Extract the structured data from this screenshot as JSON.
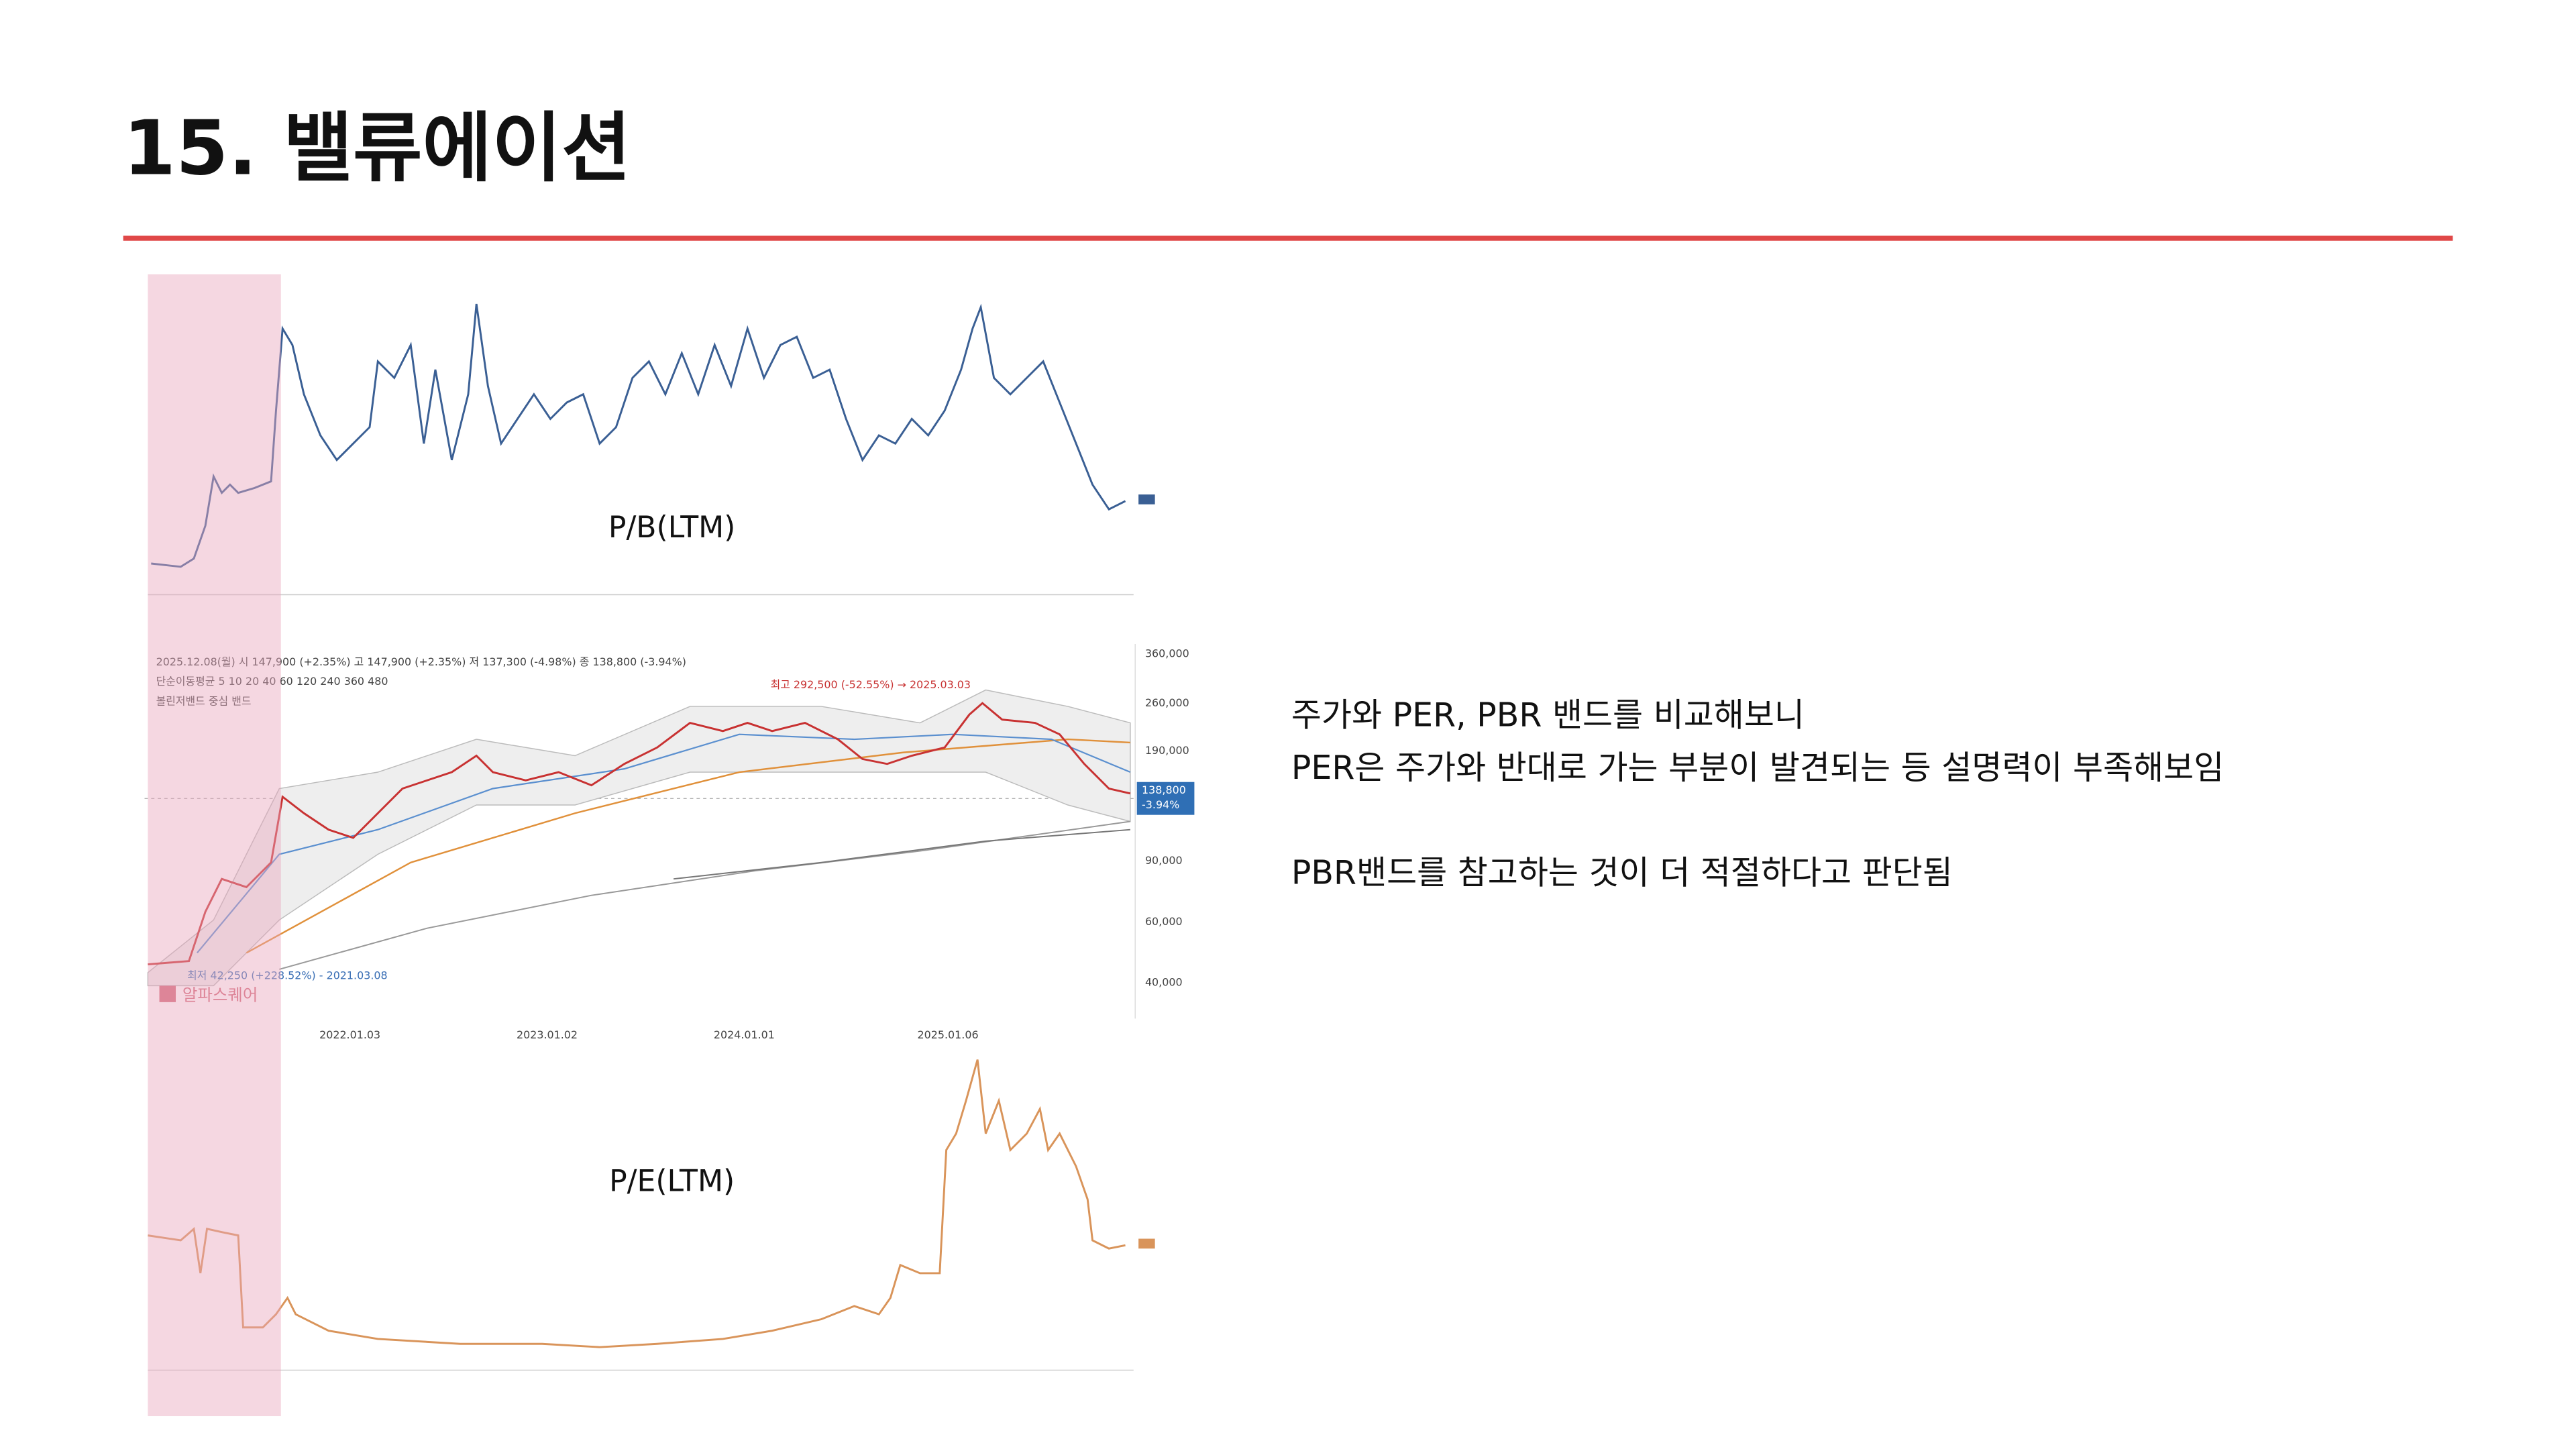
{
  "header": {
    "title": "15. 밸류에이션"
  },
  "figures": {
    "pb_label": "P/B(LTM)",
    "pe_label": "P/E(LTM)",
    "price_chart": {
      "info_lines": [
        "2025.12.08(월) 시 147,900 (+2.35%) 고 147,900 (+2.35%) 저 137,300 (-4.98%) 종 138,800 (-3.94%)",
        "단순이동평균 5 10 20 40 60 120 240 360 480",
        "볼린저밴드 중심 밴드"
      ],
      "high_note": "최고 292,500 (-52.55%) → 2025.03.03",
      "low_note": "최저 42,250 (+228.52%) - 2021.03.08",
      "brand": "알파스퀘어",
      "x_labels": [
        "2022.01.03",
        "2023.01.02",
        "2024.01.01",
        "2025.01.06"
      ],
      "y_labels": [
        "360,000",
        "260,000",
        "190,000",
        "90,000",
        "60,000",
        "40,000"
      ],
      "last_price": "138,800",
      "last_change": "-3.94%"
    }
  },
  "body": {
    "lines": [
      "주가와 PER, PBR 밴드를 비교해보니",
      "PER은 주가와 반대로 가는 부분이 발견되는 등 설명력이 부족해보임",
      "PBR밴드를 참고하는 것이 더 적절하다고 판단됨"
    ]
  }
}
